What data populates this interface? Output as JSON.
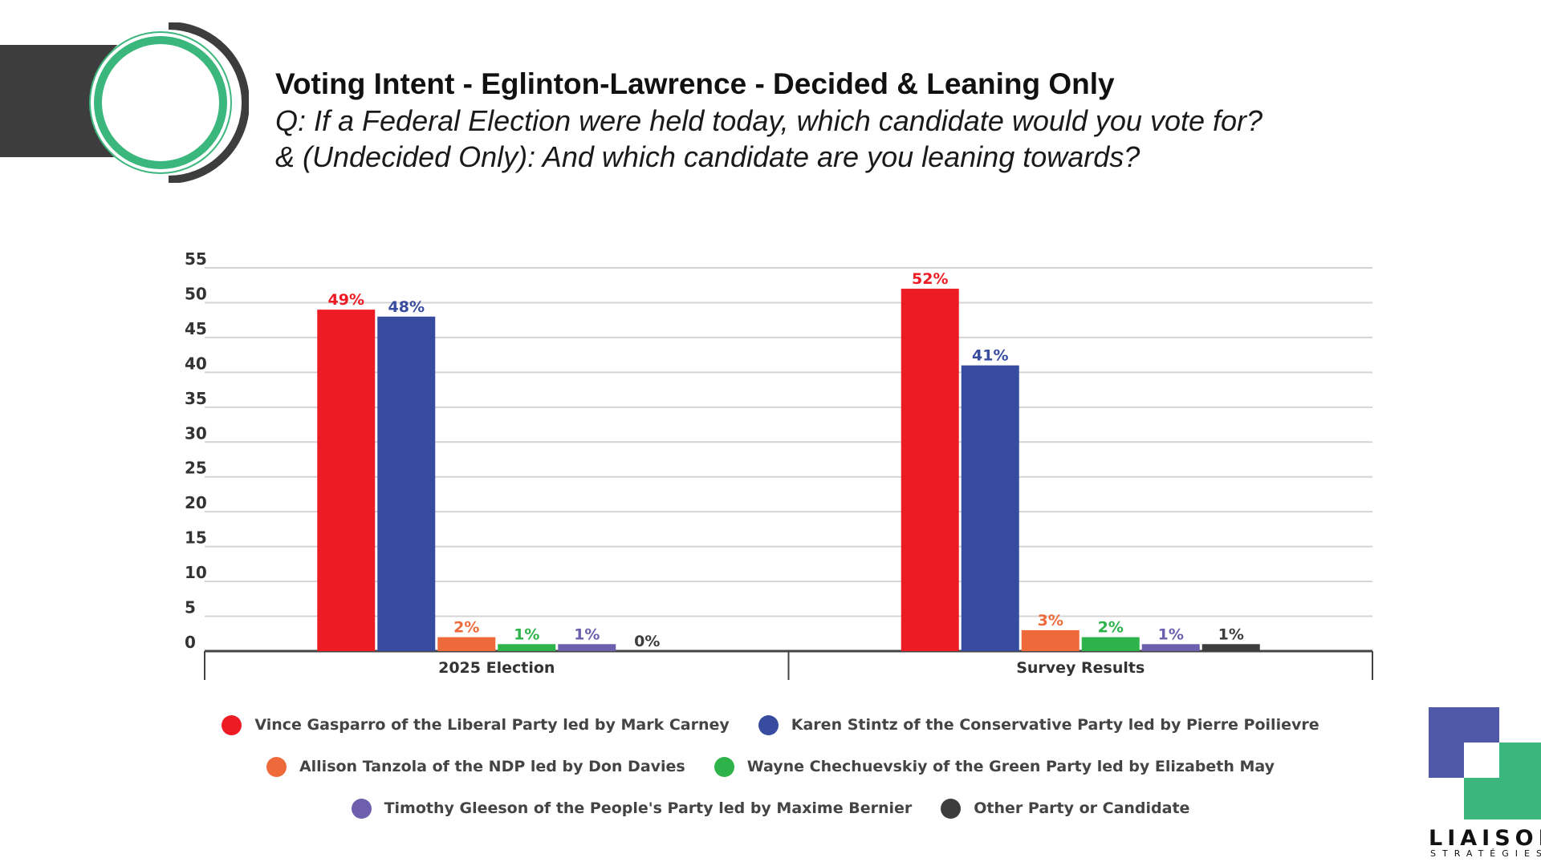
{
  "header": {
    "title": "Voting Intent - Eglinton-Lawrence - Decided & Leaning Only",
    "subtitle_line1": "Q: If a Federal Election were held today, which candidate would you vote for?",
    "subtitle_line2": "& (Undecided Only): And which candidate are you leaning towards?"
  },
  "logo": {
    "name": "LIAISON",
    "sub": "STRATÉGIES"
  },
  "colors": {
    "liberal": "#ed1c24",
    "conservative": "#374b9f",
    "ndp": "#ef6a3a",
    "green": "#2db34a",
    "ppc": "#6e5eae",
    "other": "#3d3d3d",
    "accent_teal": "#3bb77e",
    "logo_blue": "#5058a8"
  },
  "chart_data": {
    "type": "bar",
    "title": "Voting Intent - Eglinton-Lawrence - Decided & Leaning Only",
    "xlabel": "",
    "ylabel": "",
    "ylim": [
      0,
      55
    ],
    "yticks": [
      0,
      5,
      10,
      15,
      20,
      25,
      30,
      35,
      40,
      45,
      50,
      55
    ],
    "grid": true,
    "legend_position": "bottom",
    "categories": [
      "2025 Election",
      "Survey Results"
    ],
    "series": [
      {
        "name": "Vince Gasparro of the Liberal Party led by Mark Carney",
        "color": "#ed1c24",
        "values": [
          49,
          52
        ],
        "labels": [
          "49%",
          "52%"
        ]
      },
      {
        "name": "Karen Stintz of the Conservative Party led by Pierre Poilievre",
        "color": "#374b9f",
        "values": [
          48,
          41
        ],
        "labels": [
          "48%",
          "41%"
        ]
      },
      {
        "name": "Allison Tanzola of the NDP led by Don Davies",
        "color": "#ef6a3a",
        "values": [
          2,
          3
        ],
        "labels": [
          "2%",
          "3%"
        ]
      },
      {
        "name": "Wayne Chechuevskiy of the Green Party led by Elizabeth May",
        "color": "#2db34a",
        "values": [
          1,
          2
        ],
        "labels": [
          "1%",
          "2%"
        ]
      },
      {
        "name": "Timothy Gleeson of the People's Party led by Maxime Bernier",
        "color": "#6e5eae",
        "values": [
          1,
          1
        ],
        "labels": [
          "1%",
          "1%"
        ]
      },
      {
        "name": "Other Party or Candidate",
        "color": "#3d3d3d",
        "values": [
          0,
          1
        ],
        "labels": [
          "0%",
          "1%"
        ]
      }
    ]
  }
}
